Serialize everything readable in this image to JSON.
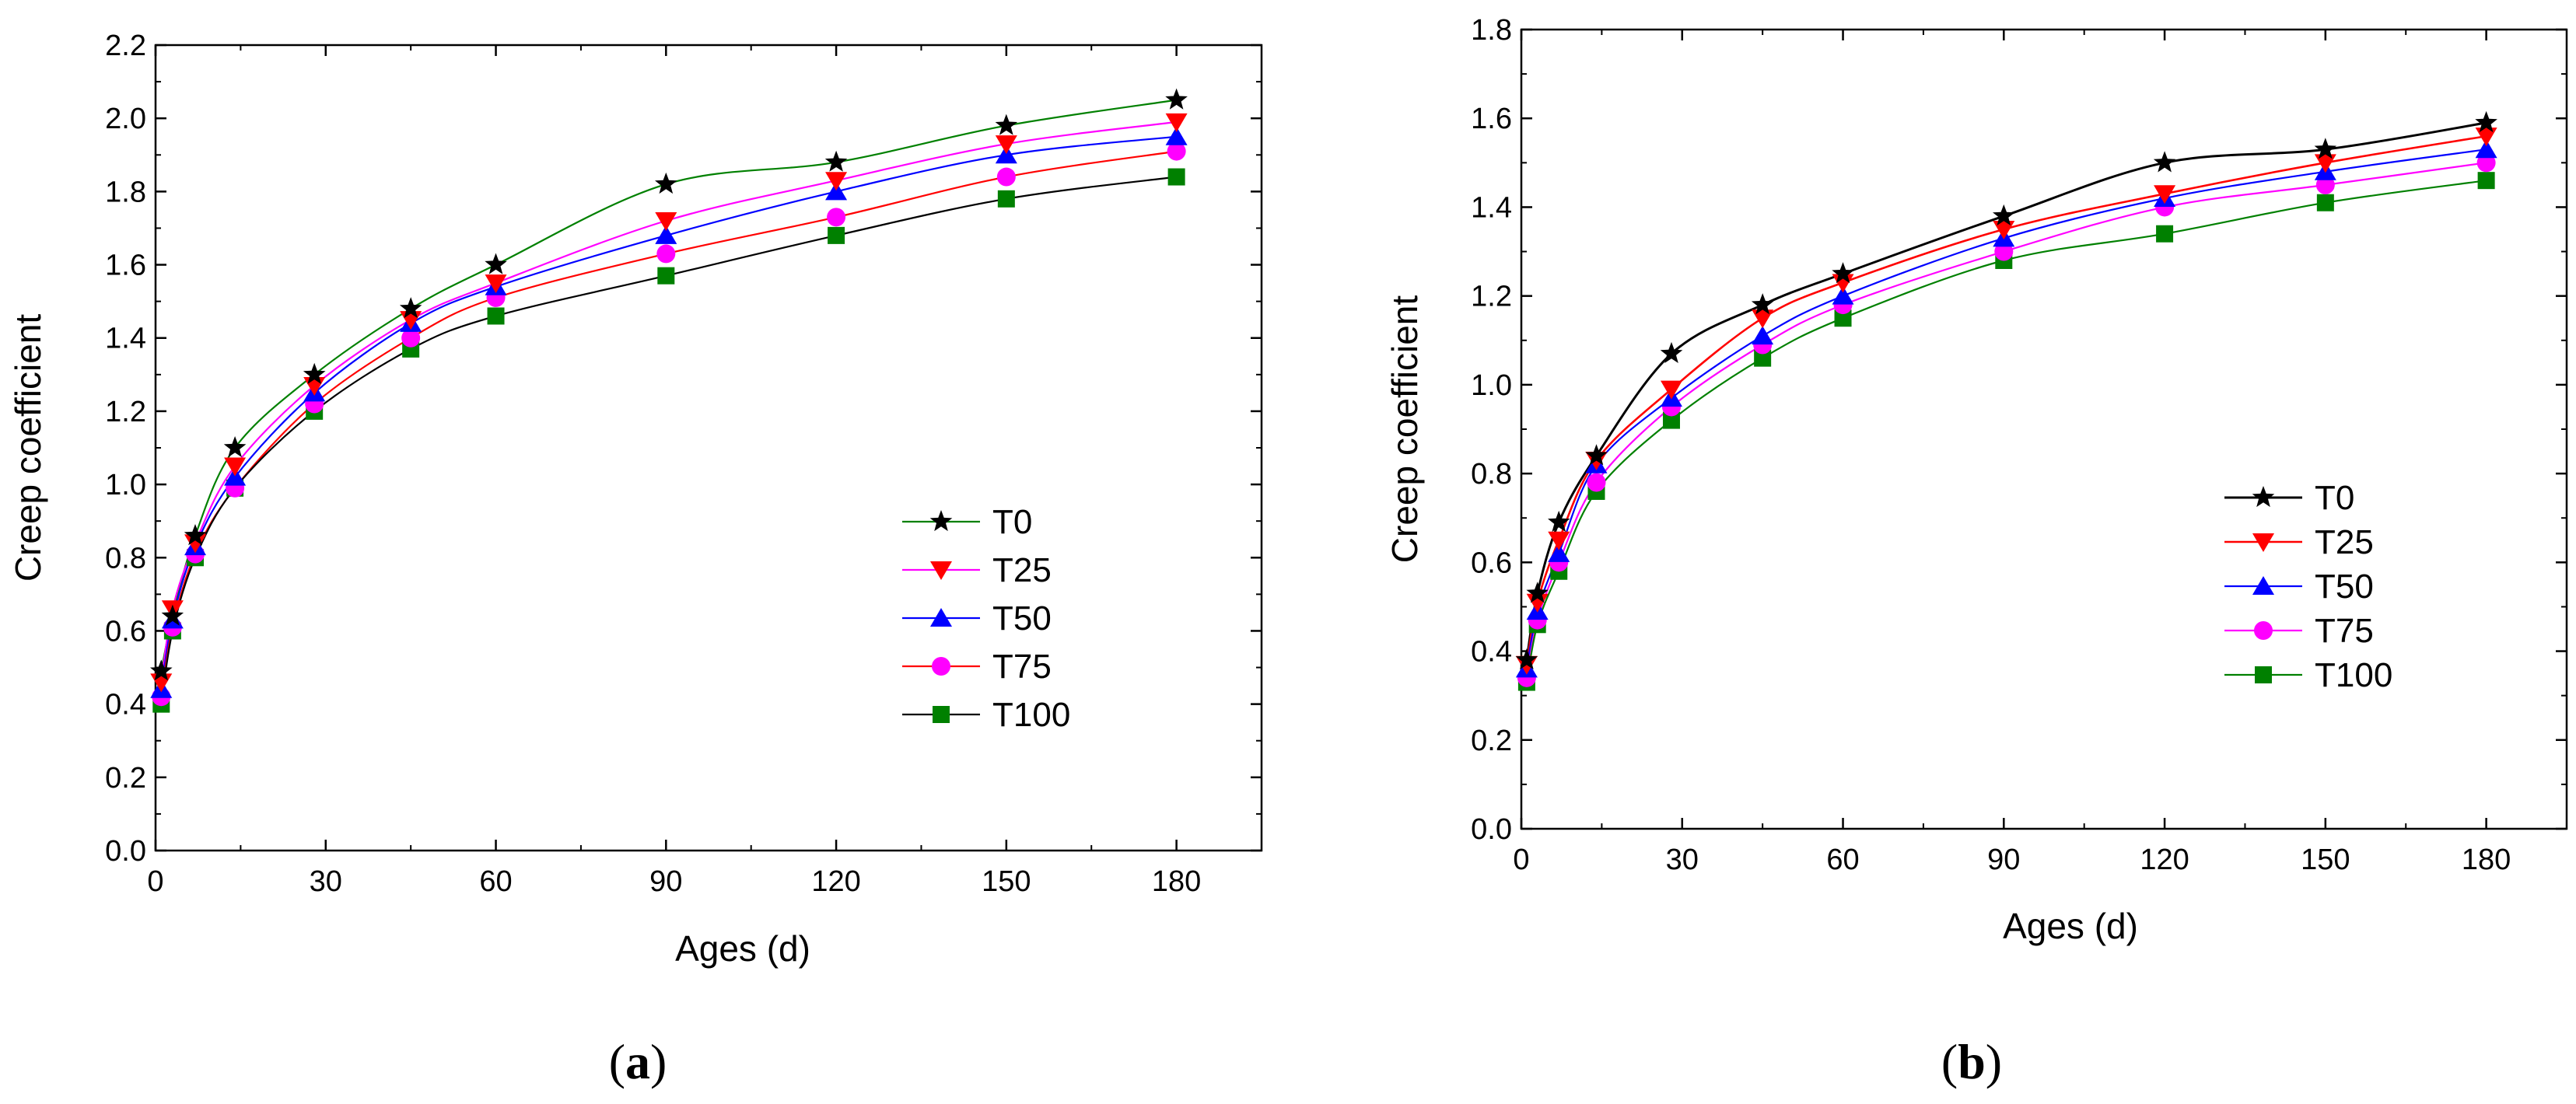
{
  "chart_data": [
    {
      "type": "line",
      "panel_label": "a",
      "title": "",
      "xlabel": "Ages (d)",
      "ylabel": "Creep coefficient",
      "xlim": [
        0,
        195
      ],
      "ylim": [
        0,
        2.2
      ],
      "xticks": [
        0,
        30,
        60,
        90,
        120,
        150,
        180
      ],
      "yticks": [
        0.0,
        0.2,
        0.4,
        0.6,
        0.8,
        1.0,
        1.2,
        1.4,
        1.6,
        1.8,
        2.0,
        2.2
      ],
      "x": [
        1,
        3,
        7,
        14,
        28,
        45,
        60,
        90,
        120,
        150,
        180
      ],
      "legend_position": "lower-right",
      "series": [
        {
          "name": "T0",
          "marker": "star",
          "color": "#000000",
          "line_color": "#008000",
          "values": [
            0.49,
            0.64,
            0.86,
            1.1,
            1.3,
            1.48,
            1.6,
            1.82,
            1.88,
            1.98,
            2.05
          ]
        },
        {
          "name": "T25",
          "marker": "triangle-down",
          "color": "#ff0000",
          "line_color": "#ff00ff",
          "values": [
            0.46,
            0.66,
            0.84,
            1.05,
            1.27,
            1.45,
            1.55,
            1.72,
            1.83,
            1.93,
            1.99
          ]
        },
        {
          "name": "T50",
          "marker": "triangle-up",
          "color": "#0000ff",
          "line_color": "#0000ff",
          "values": [
            0.44,
            0.63,
            0.83,
            1.02,
            1.25,
            1.44,
            1.54,
            1.68,
            1.8,
            1.9,
            1.95
          ]
        },
        {
          "name": "T75",
          "marker": "circle",
          "color": "#ff00ff",
          "line_color": "#ff0000",
          "values": [
            0.42,
            0.61,
            0.81,
            0.99,
            1.22,
            1.4,
            1.51,
            1.63,
            1.73,
            1.84,
            1.91
          ]
        },
        {
          "name": "T100",
          "marker": "square",
          "color": "#008000",
          "line_color": "#000000",
          "values": [
            0.4,
            0.6,
            0.8,
            0.99,
            1.2,
            1.37,
            1.46,
            1.57,
            1.68,
            1.78,
            1.84
          ]
        }
      ]
    },
    {
      "type": "line",
      "panel_label": "b",
      "title": "",
      "xlabel": "Ages (d)",
      "ylabel": "Creep coefficient",
      "xlim": [
        0,
        195
      ],
      "ylim": [
        0,
        1.8
      ],
      "xticks": [
        0,
        30,
        60,
        90,
        120,
        150,
        180
      ],
      "yticks": [
        0.0,
        0.2,
        0.4,
        0.6,
        0.8,
        1.0,
        1.2,
        1.4,
        1.6,
        1.8
      ],
      "x": [
        1,
        3,
        7,
        14,
        28,
        45,
        60,
        90,
        120,
        150,
        180
      ],
      "legend_position": "lower-right",
      "series": [
        {
          "name": "T0",
          "marker": "star",
          "color": "#000000",
          "line_color": "#000000",
          "values": [
            0.38,
            0.53,
            0.69,
            0.84,
            1.07,
            1.18,
            1.25,
            1.38,
            1.5,
            1.53,
            1.59
          ]
        },
        {
          "name": "T25",
          "marker": "triangle-down",
          "color": "#ff0000",
          "line_color": "#ff0000",
          "values": [
            0.37,
            0.51,
            0.65,
            0.83,
            0.99,
            1.15,
            1.23,
            1.35,
            1.43,
            1.5,
            1.56
          ]
        },
        {
          "name": "T50",
          "marker": "triangle-up",
          "color": "#0000ff",
          "line_color": "#0000ff",
          "values": [
            0.36,
            0.49,
            0.62,
            0.82,
            0.97,
            1.11,
            1.2,
            1.33,
            1.42,
            1.48,
            1.53
          ]
        },
        {
          "name": "T75",
          "marker": "circle",
          "color": "#ff00ff",
          "line_color": "#ff00ff",
          "values": [
            0.34,
            0.47,
            0.6,
            0.78,
            0.95,
            1.09,
            1.18,
            1.3,
            1.4,
            1.45,
            1.5
          ]
        },
        {
          "name": "T100",
          "marker": "square",
          "color": "#008000",
          "line_color": "#008000",
          "values": [
            0.33,
            0.46,
            0.58,
            0.76,
            0.92,
            1.06,
            1.15,
            1.28,
            1.34,
            1.41,
            1.46
          ]
        }
      ]
    }
  ]
}
